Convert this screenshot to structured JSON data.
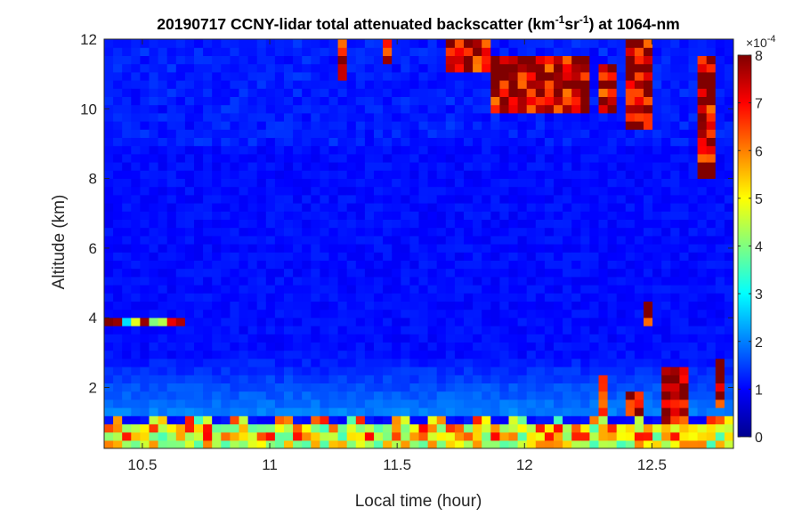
{
  "chart_data": {
    "type": "heatmap",
    "title": {
      "prefix": "20190717 CCNY-lidar total attenuated backscatter (km",
      "sup1": "-1",
      "mid": "sr",
      "sup2": "-1",
      "suffix": ") at 1064-nm"
    },
    "xlabel": "Local time (hour)",
    "ylabel": "Altitude (km)",
    "xlim": [
      10.35,
      12.82
    ],
    "ylim": [
      0.25,
      12
    ],
    "xticks": [
      10.5,
      11,
      11.5,
      12,
      12.5
    ],
    "xtick_labels": [
      "10.5",
      "11",
      "11.5",
      "12",
      "12.5"
    ],
    "yticks": [
      2,
      4,
      6,
      8,
      10,
      12
    ],
    "ytick_labels": [
      "2",
      "4",
      "6",
      "8",
      "10",
      "12"
    ],
    "colorbar": {
      "range": [
        0,
        8
      ],
      "ticks": [
        0,
        1,
        2,
        3,
        4,
        5,
        6,
        7,
        8
      ],
      "tick_labels": [
        "0",
        "1",
        "2",
        "3",
        "4",
        "5",
        "6",
        "7",
        "8"
      ],
      "multiplier_base": "×10",
      "multiplier_exp": "-4",
      "colormap": "jet"
    },
    "features": {
      "boundary_layer_top_km": 1.0,
      "aerosol_layer_km": [
        1.3,
        3.0
      ],
      "residual_layer_km": 3.85,
      "cirrus_clouds": [
        {
          "x": [
            11.26,
            11.32
          ],
          "y": [
            10.9,
            12
          ]
        },
        {
          "x": [
            11.43,
            11.48
          ],
          "y": [
            11.2,
            12
          ]
        },
        {
          "x": [
            11.7,
            11.88
          ],
          "y": [
            11.1,
            12
          ]
        },
        {
          "x": [
            11.88,
            12.24
          ],
          "y": [
            10.0,
            11.5
          ]
        },
        {
          "x": [
            12.28,
            12.35
          ],
          "y": [
            9.8,
            11.2
          ]
        },
        {
          "x": [
            12.38,
            12.52
          ],
          "y": [
            9.3,
            11.9
          ]
        },
        {
          "x": [
            12.68,
            12.75
          ],
          "y": [
            7.9,
            11.5
          ]
        }
      ],
      "low_clouds": [
        {
          "x": [
            12.48,
            12.52
          ],
          "y": [
            3.7,
            4.5
          ]
        },
        {
          "x": [
            12.28,
            12.34
          ],
          "y": [
            1.3,
            2.3
          ]
        },
        {
          "x": [
            12.4,
            12.45
          ],
          "y": [
            1.3,
            2.0
          ]
        },
        {
          "x": [
            12.55,
            12.65
          ],
          "y": [
            1.0,
            2.5
          ]
        },
        {
          "x": [
            12.76,
            12.8
          ],
          "y": [
            1.5,
            2.8
          ]
        }
      ]
    }
  }
}
